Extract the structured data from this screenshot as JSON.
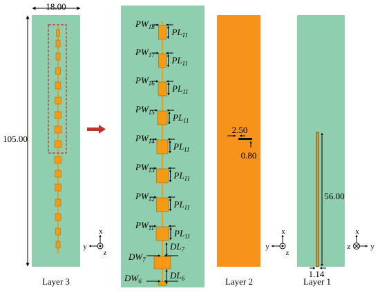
{
  "colors": {
    "substrate": "#8fceae",
    "patch": "#f59a14",
    "layer2": "#f7921a",
    "arrow": "#c0332b",
    "highlight": "#c0332b",
    "feed_line": "#111111"
  },
  "panels": {
    "layer3": {
      "caption": "Layer 3",
      "width_label": "18.00",
      "length_label": "105.00"
    },
    "zoom": {
      "pl_label": "PL",
      "pl_sub": "11",
      "pw_labels": [
        {
          "main": "PW",
          "sub": "18"
        },
        {
          "main": "PW",
          "sub": "17"
        },
        {
          "main": "PW",
          "sub": "16"
        },
        {
          "main": "PW",
          "sub": "15"
        },
        {
          "main": "PW",
          "sub": "14"
        },
        {
          "main": "PW",
          "sub": "13"
        },
        {
          "main": "PW",
          "sub": "12"
        },
        {
          "main": "PW",
          "sub": "11"
        }
      ],
      "dw7": {
        "main": "DW",
        "sub": "7"
      },
      "dl7": {
        "main": "DL",
        "sub": "7"
      },
      "dw6": {
        "main": "DW",
        "sub": "6"
      },
      "dl6": {
        "main": "DL",
        "sub": "6"
      }
    },
    "layer2": {
      "caption": "Layer 2",
      "gap_label": "2.50",
      "slot_label": "0.80"
    },
    "layer1": {
      "caption": "Layer 1",
      "line_length_label": "56.00",
      "line_width_label": "1.14"
    }
  },
  "axes": {
    "layer3": {
      "x": "x",
      "y": "y",
      "z": "z"
    },
    "layer2": {
      "x": "x",
      "y": "y",
      "z": "z"
    },
    "layer1": {
      "x": "x",
      "y": "y",
      "z": "z"
    }
  }
}
